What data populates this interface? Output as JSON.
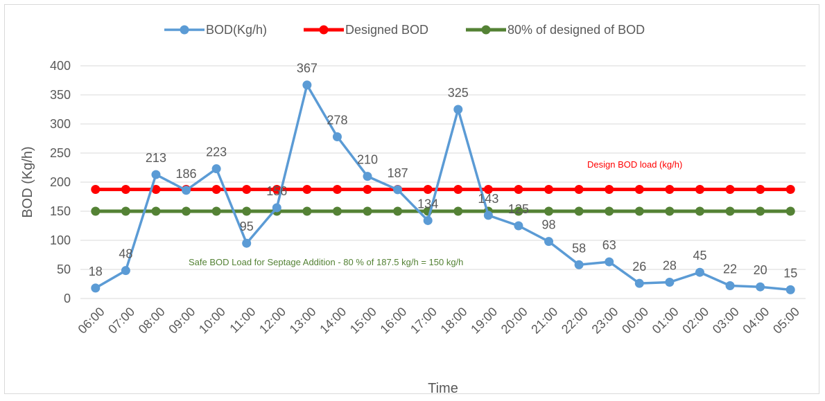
{
  "chart_data": {
    "type": "line",
    "xlabel": "Time",
    "ylabel": "BOD (Kg/h)",
    "ylim": [
      0,
      400
    ],
    "yticks": [
      "0",
      "50",
      "100",
      "150",
      "200",
      "250",
      "300",
      "350",
      "400"
    ],
    "grid": "horizontal",
    "legend_position": "top",
    "categories": [
      "06:00",
      "07:00",
      "08:00",
      "09:00",
      "10:00",
      "11:00",
      "12:00",
      "13:00",
      "14:00",
      "15:00",
      "16:00",
      "17:00",
      "18:00",
      "19:00",
      "20:00",
      "21:00",
      "22:00",
      "23:00",
      "00:00",
      "01:00",
      "02:00",
      "03:00",
      "04:00",
      "05:00"
    ],
    "series": [
      {
        "name": "BOD(Kg/h)",
        "color": "#5b9bd5",
        "values": [
          18,
          48,
          213,
          186,
          223,
          95,
          156,
          367,
          278,
          210,
          187,
          134,
          325,
          143,
          125,
          98,
          58,
          63,
          26,
          28,
          45,
          22,
          20,
          15
        ],
        "labels": [
          "18",
          "48",
          "213",
          "186",
          "223",
          "95",
          "156",
          "367",
          "278",
          "210",
          "187",
          "134",
          "325",
          "143",
          "125",
          "98",
          "58",
          "63",
          "26",
          "28",
          "45",
          "22",
          "20",
          "15"
        ]
      },
      {
        "name": "Designed BOD",
        "color": "#ff0000",
        "values": [
          187.5,
          187.5,
          187.5,
          187.5,
          187.5,
          187.5,
          187.5,
          187.5,
          187.5,
          187.5,
          187.5,
          187.5,
          187.5,
          187.5,
          187.5,
          187.5,
          187.5,
          187.5,
          187.5,
          187.5,
          187.5,
          187.5,
          187.5,
          187.5
        ]
      },
      {
        "name": "80% of designed of BOD",
        "color": "#548235",
        "values": [
          150,
          150,
          150,
          150,
          150,
          150,
          150,
          150,
          150,
          150,
          150,
          150,
          150,
          150,
          150,
          150,
          150,
          150,
          150,
          150,
          150,
          150,
          150,
          150
        ]
      }
    ],
    "annotations": [
      {
        "text": "Design BOD load (kg/h)",
        "color": "#ff0000"
      },
      {
        "text": "Safe BOD Load for Septage Addition - 80 % of 187.5 kg/h = 150 kg/h",
        "color": "#548235"
      }
    ]
  }
}
